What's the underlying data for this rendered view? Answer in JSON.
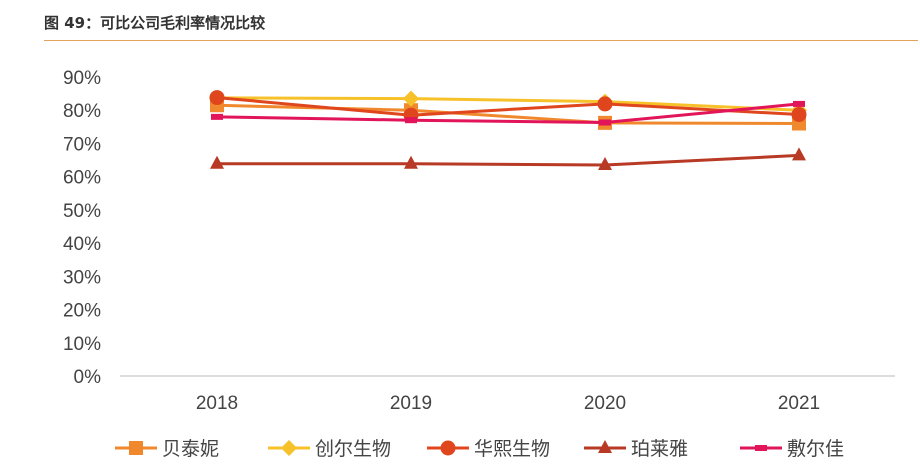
{
  "header": {
    "title": "图 49：可比公司毛利率情况比较",
    "rule_color": "#e3a25a"
  },
  "chart_data": {
    "type": "line",
    "title": "",
    "xlabel": "",
    "ylabel": "",
    "categories": [
      "2018",
      "2019",
      "2020",
      "2021"
    ],
    "ylim": [
      0,
      90
    ],
    "yticks": [
      0,
      10,
      20,
      30,
      40,
      50,
      60,
      70,
      80,
      90
    ],
    "ytick_labels": [
      "0%",
      "10%",
      "20%",
      "30%",
      "40%",
      "50%",
      "60%",
      "70%",
      "80%",
      "90%"
    ],
    "grid": false,
    "legend_position": "bottom",
    "series": [
      {
        "name": "贝泰妮",
        "color": "#f0892e",
        "marker": "square",
        "values": [
          81.5,
          80.0,
          76.2,
          76.0
        ]
      },
      {
        "name": "创尔生物",
        "color": "#f7c12a",
        "marker": "diamond",
        "values": [
          83.7,
          83.5,
          82.6,
          80.0
        ]
      },
      {
        "name": "华熙生物",
        "color": "#e0461e",
        "marker": "circle",
        "values": [
          83.8,
          78.5,
          81.9,
          78.7
        ]
      },
      {
        "name": "珀莱雅",
        "color": "#b83a24",
        "marker": "triangle",
        "values": [
          63.9,
          63.9,
          63.5,
          66.4
        ]
      },
      {
        "name": "敷尔佳",
        "color": "#e2145a",
        "marker": "dash",
        "values": [
          78.0,
          77.0,
          76.3,
          81.9
        ]
      }
    ]
  }
}
